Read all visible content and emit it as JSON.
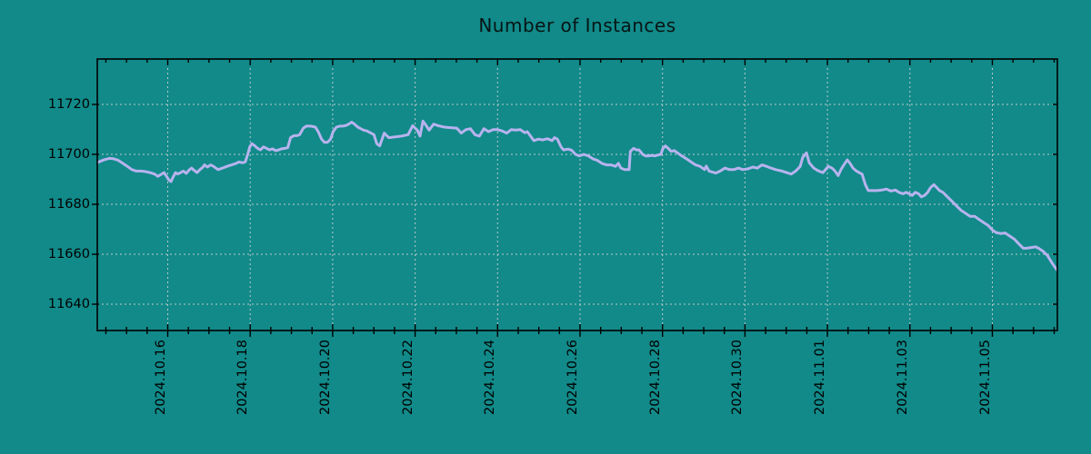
{
  "title": "Number of Instances",
  "colors": {
    "background": "#118a89",
    "line": "#b7b3ee",
    "grid": "#d0d0d0",
    "axis": "#000000",
    "text": "#000000"
  },
  "chart_data": {
    "type": "line",
    "title": "Number of Instances",
    "legend_position": "none",
    "grid": "dashed",
    "x_axis": {
      "unit": "date",
      "tick_labels": [
        "2024.10.16",
        "2024.10.18",
        "2024.10.20",
        "2024.10.22",
        "2024.10.24",
        "2024.10.26",
        "2024.10.28",
        "2024.10.30",
        "2024.11.01",
        "2024.11.03",
        "2024.11.05"
      ],
      "tick_day_offsets": [
        0,
        2,
        4,
        6,
        8,
        10,
        12,
        14,
        16,
        18,
        20
      ],
      "minor_tick_interval_days": 0.5,
      "range_day_offsets": [
        -1.71,
        21.58
      ]
    },
    "y_axis": {
      "tick_labels": [
        "11640",
        "11660",
        "11680",
        "11700",
        "11720"
      ],
      "tick_values": [
        11640,
        11660,
        11680,
        11700,
        11720
      ],
      "range": [
        11630,
        11738
      ]
    },
    "series": [
      {
        "name": "Number of Instances",
        "color": "#b7b3ee",
        "points": [
          [
            -1.71,
            11696.7
          ],
          [
            -1.64,
            11697.2
          ],
          [
            -1.53,
            11697.9
          ],
          [
            -1.42,
            11698.4
          ],
          [
            -1.31,
            11698.2
          ],
          [
            -1.2,
            11697.6
          ],
          [
            -1.09,
            11696.4
          ],
          [
            -0.98,
            11695.2
          ],
          [
            -0.87,
            11693.9
          ],
          [
            -0.76,
            11693.3
          ],
          [
            -0.65,
            11693.3
          ],
          [
            -0.54,
            11693.1
          ],
          [
            -0.43,
            11692.7
          ],
          [
            -0.32,
            11692.1
          ],
          [
            -0.24,
            11691.2
          ],
          [
            -0.17,
            11691.9
          ],
          [
            -0.09,
            11692.7
          ],
          [
            -0.04,
            11691.5
          ],
          [
            0.02,
            11689.9
          ],
          [
            0.08,
            11689.1
          ],
          [
            0.13,
            11690.9
          ],
          [
            0.19,
            11692.7
          ],
          [
            0.24,
            11692.1
          ],
          [
            0.31,
            11692.7
          ],
          [
            0.38,
            11693.3
          ],
          [
            0.45,
            11692.4
          ],
          [
            0.53,
            11693.9
          ],
          [
            0.58,
            11694.5
          ],
          [
            0.64,
            11693.6
          ],
          [
            0.71,
            11692.7
          ],
          [
            0.78,
            11693.9
          ],
          [
            0.85,
            11694.8
          ],
          [
            0.89,
            11695.8
          ],
          [
            0.96,
            11694.9
          ],
          [
            1.04,
            11695.8
          ],
          [
            1.11,
            11695.2
          ],
          [
            1.22,
            11693.9
          ],
          [
            1.33,
            11694.5
          ],
          [
            1.44,
            11695.2
          ],
          [
            1.55,
            11695.8
          ],
          [
            1.66,
            11696.4
          ],
          [
            1.73,
            11697.0
          ],
          [
            1.81,
            11696.6
          ],
          [
            1.88,
            11697.0
          ],
          [
            1.94,
            11700.0
          ],
          [
            1.99,
            11703.0
          ],
          [
            2.04,
            11704.3
          ],
          [
            2.1,
            11703.6
          ],
          [
            2.18,
            11702.4
          ],
          [
            2.25,
            11701.8
          ],
          [
            2.32,
            11703.0
          ],
          [
            2.4,
            11702.4
          ],
          [
            2.47,
            11701.8
          ],
          [
            2.54,
            11702.2
          ],
          [
            2.62,
            11701.5
          ],
          [
            2.69,
            11701.8
          ],
          [
            2.76,
            11702.2
          ],
          [
            2.84,
            11702.4
          ],
          [
            2.91,
            11702.7
          ],
          [
            2.98,
            11706.7
          ],
          [
            3.06,
            11707.5
          ],
          [
            3.13,
            11707.5
          ],
          [
            3.2,
            11707.9
          ],
          [
            3.29,
            11710.5
          ],
          [
            3.36,
            11711.3
          ],
          [
            3.47,
            11711.3
          ],
          [
            3.58,
            11710.9
          ],
          [
            3.65,
            11709.1
          ],
          [
            3.73,
            11706.1
          ],
          [
            3.8,
            11704.8
          ],
          [
            3.87,
            11704.8
          ],
          [
            3.95,
            11706.1
          ],
          [
            4.01,
            11709.1
          ],
          [
            4.09,
            11710.9
          ],
          [
            4.17,
            11711.3
          ],
          [
            4.24,
            11711.3
          ],
          [
            4.31,
            11711.5
          ],
          [
            4.39,
            11712.1
          ],
          [
            4.46,
            11712.9
          ],
          [
            4.53,
            11712.1
          ],
          [
            4.61,
            11710.9
          ],
          [
            4.68,
            11710.3
          ],
          [
            4.75,
            11709.7
          ],
          [
            4.83,
            11709.4
          ],
          [
            5.0,
            11707.9
          ],
          [
            5.07,
            11704.3
          ],
          [
            5.14,
            11703.4
          ],
          [
            5.25,
            11708.5
          ],
          [
            5.36,
            11706.7
          ],
          [
            5.52,
            11707.0
          ],
          [
            5.67,
            11707.3
          ],
          [
            5.83,
            11707.9
          ],
          [
            5.94,
            11711.5
          ],
          [
            6.05,
            11709.7
          ],
          [
            6.12,
            11707.3
          ],
          [
            6.19,
            11713.3
          ],
          [
            6.27,
            11711.5
          ],
          [
            6.34,
            11709.7
          ],
          [
            6.45,
            11712.1
          ],
          [
            6.56,
            11711.5
          ],
          [
            6.71,
            11710.9
          ],
          [
            6.86,
            11710.7
          ],
          [
            7.01,
            11710.5
          ],
          [
            7.12,
            11708.5
          ],
          [
            7.23,
            11709.9
          ],
          [
            7.34,
            11710.3
          ],
          [
            7.45,
            11707.9
          ],
          [
            7.56,
            11707.3
          ],
          [
            7.67,
            11710.3
          ],
          [
            7.78,
            11709.1
          ],
          [
            7.89,
            11709.9
          ],
          [
            8.0,
            11709.9
          ],
          [
            8.11,
            11709.4
          ],
          [
            8.22,
            11708.5
          ],
          [
            8.33,
            11709.9
          ],
          [
            8.44,
            11709.7
          ],
          [
            8.55,
            11709.9
          ],
          [
            8.66,
            11708.7
          ],
          [
            8.72,
            11709.1
          ],
          [
            8.88,
            11705.5
          ],
          [
            8.99,
            11706.1
          ],
          [
            9.1,
            11705.8
          ],
          [
            9.21,
            11706.3
          ],
          [
            9.32,
            11705.5
          ],
          [
            9.38,
            11706.7
          ],
          [
            9.45,
            11706.1
          ],
          [
            9.54,
            11703.0
          ],
          [
            9.6,
            11701.8
          ],
          [
            9.71,
            11702.1
          ],
          [
            9.8,
            11701.6
          ],
          [
            9.89,
            11700.0
          ],
          [
            9.98,
            11699.4
          ],
          [
            10.09,
            11700.0
          ],
          [
            10.2,
            11699.4
          ],
          [
            10.31,
            11698.2
          ],
          [
            10.42,
            11697.6
          ],
          [
            10.53,
            11696.4
          ],
          [
            10.64,
            11695.8
          ],
          [
            10.75,
            11695.8
          ],
          [
            10.86,
            11695.2
          ],
          [
            10.93,
            11696.4
          ],
          [
            10.99,
            11694.5
          ],
          [
            11.08,
            11693.9
          ],
          [
            11.19,
            11693.9
          ],
          [
            11.22,
            11701.2
          ],
          [
            11.3,
            11702.4
          ],
          [
            11.37,
            11701.8
          ],
          [
            11.43,
            11701.8
          ],
          [
            11.52,
            11700.0
          ],
          [
            11.59,
            11699.4
          ],
          [
            11.66,
            11699.4
          ],
          [
            11.74,
            11699.6
          ],
          [
            11.81,
            11699.4
          ],
          [
            11.88,
            11699.7
          ],
          [
            11.96,
            11700.0
          ],
          [
            12.01,
            11702.4
          ],
          [
            12.07,
            11703.4
          ],
          [
            12.14,
            11702.4
          ],
          [
            12.21,
            11701.2
          ],
          [
            12.29,
            11701.5
          ],
          [
            12.36,
            11700.6
          ],
          [
            12.47,
            11699.4
          ],
          [
            12.58,
            11698.2
          ],
          [
            12.69,
            11697.0
          ],
          [
            12.8,
            11695.8
          ],
          [
            12.91,
            11695.2
          ],
          [
            13.02,
            11693.9
          ],
          [
            13.06,
            11695.3
          ],
          [
            13.13,
            11693.3
          ],
          [
            13.29,
            11692.5
          ],
          [
            13.4,
            11693.3
          ],
          [
            13.51,
            11694.5
          ],
          [
            13.62,
            11693.9
          ],
          [
            13.73,
            11693.9
          ],
          [
            13.84,
            11694.5
          ],
          [
            13.95,
            11693.9
          ],
          [
            14.08,
            11694.2
          ],
          [
            14.19,
            11694.9
          ],
          [
            14.3,
            11694.5
          ],
          [
            14.41,
            11695.8
          ],
          [
            14.52,
            11695.2
          ],
          [
            14.63,
            11694.5
          ],
          [
            14.74,
            11693.9
          ],
          [
            14.9,
            11693.3
          ],
          [
            15.01,
            11692.7
          ],
          [
            15.12,
            11692.1
          ],
          [
            15.23,
            11693.3
          ],
          [
            15.34,
            11695.2
          ],
          [
            15.4,
            11698.8
          ],
          [
            15.49,
            11700.6
          ],
          [
            15.56,
            11696.6
          ],
          [
            15.67,
            11694.5
          ],
          [
            15.78,
            11693.4
          ],
          [
            15.89,
            11692.7
          ],
          [
            15.96,
            11694.0
          ],
          [
            16.02,
            11695.2
          ],
          [
            16.11,
            11694.5
          ],
          [
            16.18,
            11693.4
          ],
          [
            16.26,
            11691.5
          ],
          [
            16.33,
            11694.0
          ],
          [
            16.4,
            11695.8
          ],
          [
            16.48,
            11697.8
          ],
          [
            16.55,
            11696.4
          ],
          [
            16.62,
            11694.5
          ],
          [
            16.7,
            11693.4
          ],
          [
            16.77,
            11692.7
          ],
          [
            16.84,
            11692.1
          ],
          [
            16.92,
            11687.9
          ],
          [
            16.99,
            11685.5
          ],
          [
            17.1,
            11685.5
          ],
          [
            17.21,
            11685.5
          ],
          [
            17.32,
            11685.7
          ],
          [
            17.43,
            11686.1
          ],
          [
            17.54,
            11685.3
          ],
          [
            17.65,
            11685.7
          ],
          [
            17.73,
            11684.8
          ],
          [
            17.84,
            11684.2
          ],
          [
            17.91,
            11684.8
          ],
          [
            17.98,
            11684.2
          ],
          [
            18.06,
            11683.6
          ],
          [
            18.13,
            11684.8
          ],
          [
            18.21,
            11684.2
          ],
          [
            18.28,
            11683.0
          ],
          [
            18.36,
            11683.6
          ],
          [
            18.43,
            11684.8
          ],
          [
            18.5,
            11686.7
          ],
          [
            18.58,
            11687.9
          ],
          [
            18.65,
            11686.7
          ],
          [
            18.72,
            11685.5
          ],
          [
            18.8,
            11684.8
          ],
          [
            18.91,
            11683.0
          ],
          [
            19.02,
            11681.2
          ],
          [
            19.13,
            11679.4
          ],
          [
            19.24,
            11677.6
          ],
          [
            19.35,
            11676.4
          ],
          [
            19.46,
            11675.2
          ],
          [
            19.57,
            11675.2
          ],
          [
            19.68,
            11673.9
          ],
          [
            19.79,
            11672.7
          ],
          [
            19.9,
            11671.5
          ],
          [
            20.0,
            11669.7
          ],
          [
            20.09,
            11668.7
          ],
          [
            20.2,
            11668.3
          ],
          [
            20.31,
            11668.5
          ],
          [
            20.42,
            11667.3
          ],
          [
            20.53,
            11666.1
          ],
          [
            20.64,
            11664.2
          ],
          [
            20.75,
            11662.4
          ],
          [
            20.83,
            11662.4
          ],
          [
            20.94,
            11662.7
          ],
          [
            21.05,
            11663.0
          ],
          [
            21.12,
            11662.4
          ],
          [
            21.23,
            11661.2
          ],
          [
            21.34,
            11659.4
          ],
          [
            21.45,
            11656.4
          ],
          [
            21.56,
            11653.9
          ],
          [
            21.58,
            11653.5
          ]
        ]
      }
    ]
  }
}
